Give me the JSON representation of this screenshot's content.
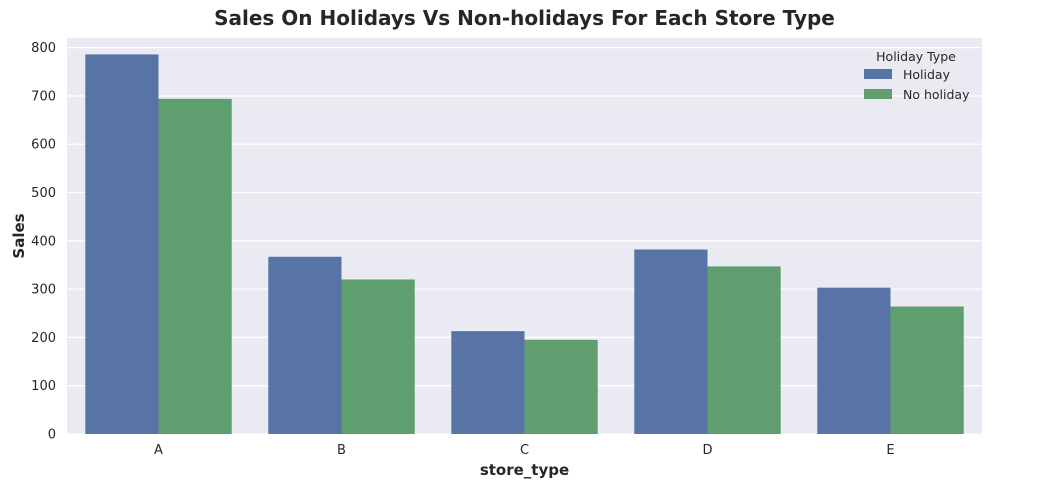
{
  "chart_data": {
    "type": "bar",
    "title": "Sales On Holidays Vs Non-holidays For Each Store Type",
    "xlabel": "store_type",
    "ylabel": "Sales",
    "categories": [
      "A",
      "B",
      "C",
      "D",
      "E"
    ],
    "series": [
      {
        "name": "Holiday",
        "color": "#5874a6",
        "values": [
          786,
          367,
          213,
          382,
          303
        ]
      },
      {
        "name": "No holiday",
        "color": "#5f9e6e",
        "values": [
          694,
          320,
          195,
          347,
          264
        ]
      }
    ],
    "ylim": [
      0,
      820
    ],
    "yticks": [
      0,
      100,
      200,
      300,
      400,
      500,
      600,
      700,
      800
    ],
    "ytick_labels": [
      "0",
      "100",
      "200",
      "300",
      "400",
      "500",
      "600",
      "700",
      "800"
    ],
    "legend": {
      "title": "Holiday Type",
      "placement": "top-right"
    },
    "grid": true,
    "background_color": "#eaeaf2",
    "grid_color": "#ffffff"
  }
}
